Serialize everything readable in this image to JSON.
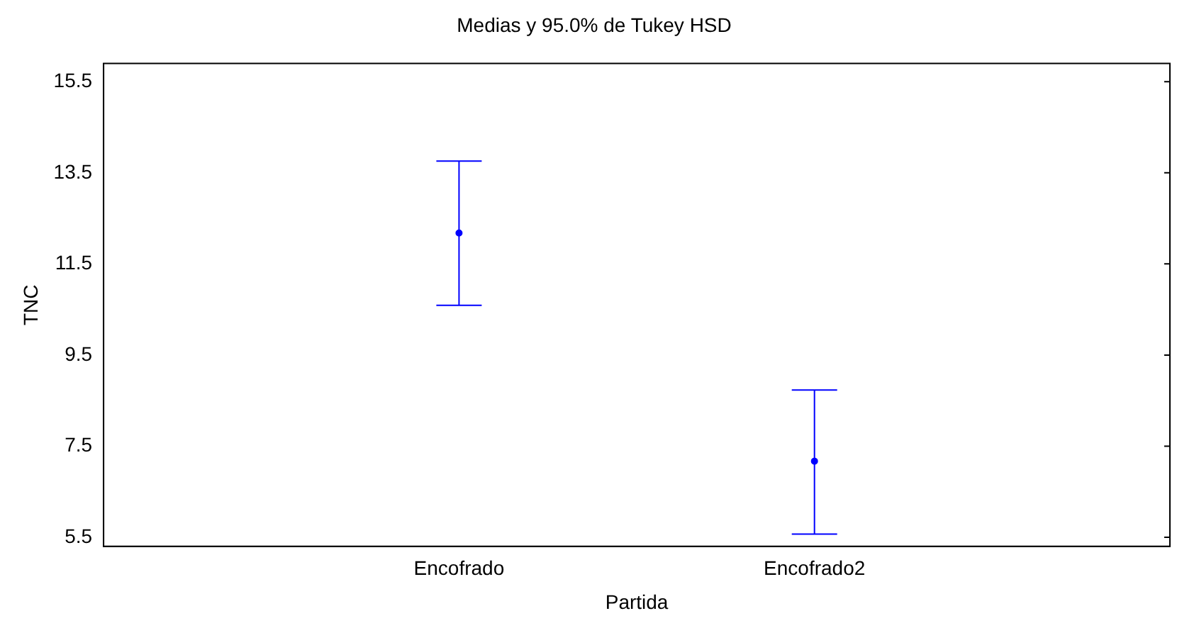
{
  "chart_data": {
    "type": "scatter",
    "title": "Medias y 95.0% de Tukey HSD",
    "xlabel": "Partida",
    "ylabel": "TNC",
    "categories": [
      "Encofrado",
      "Encofrado2"
    ],
    "series": [
      {
        "color": "#0000ff",
        "values": [
          12.18,
          7.17
        ],
        "errors": [
          [
            10.59,
            13.76
          ],
          [
            5.57,
            8.73
          ]
        ]
      }
    ],
    "ylim": [
      5.3,
      15.9
    ],
    "yticks": [
      5.5,
      7.5,
      9.5,
      11.5,
      13.5,
      15.5
    ],
    "grid": false,
    "legend": false,
    "marker": "circle"
  }
}
